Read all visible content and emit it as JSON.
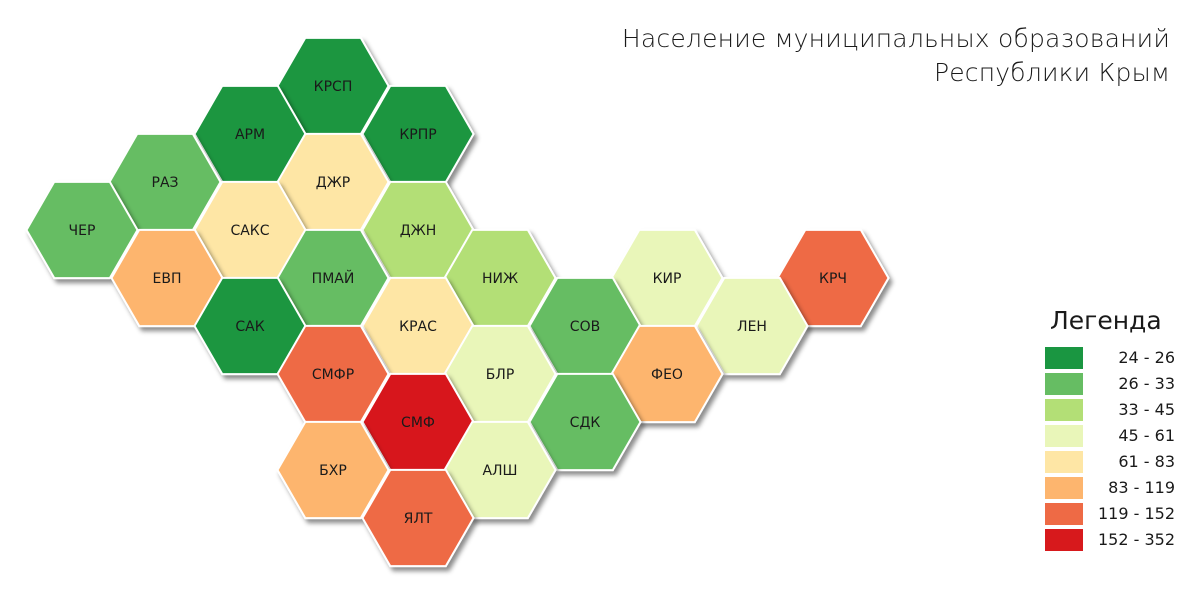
{
  "title": {
    "line1": "Население муниципальных образований",
    "line2": "Республики Крым"
  },
  "legend": {
    "title": "Легенда",
    "classes": [
      {
        "label": "24 - 26",
        "color": "#1a9641"
      },
      {
        "label": "26 - 33",
        "color": "#66bd63"
      },
      {
        "label": "33 - 45",
        "color": "#b3df76"
      },
      {
        "label": "45 - 61",
        "color": "#e9f6b9"
      },
      {
        "label": "61 - 83",
        "color": "#fee6a5"
      },
      {
        "label": "83 - 119",
        "color": "#fdb56e"
      },
      {
        "label": "119 - 152",
        "color": "#ee6a45"
      },
      {
        "label": "152 - 352",
        "color": "#d7191c"
      }
    ]
  },
  "hexes": [
    {
      "label": "КРСП",
      "class": 0
    },
    {
      "label": "АРМ",
      "class": 0
    },
    {
      "label": "КРПР",
      "class": 0
    },
    {
      "label": "РАЗ",
      "class": 1
    },
    {
      "label": "ДЖР",
      "class": 4
    },
    {
      "label": "ЧЕР",
      "class": 1
    },
    {
      "label": "САКС",
      "class": 4
    },
    {
      "label": "ДЖН",
      "class": 2
    },
    {
      "label": "ЕВП",
      "class": 5
    },
    {
      "label": "ПМАЙ",
      "class": 1
    },
    {
      "label": "НИЖ",
      "class": 2
    },
    {
      "label": "КИР",
      "class": 3
    },
    {
      "label": "КРЧ",
      "class": 6
    },
    {
      "label": "САК",
      "class": 0
    },
    {
      "label": "КРАС",
      "class": 4
    },
    {
      "label": "СОВ",
      "class": 1
    },
    {
      "label": "ЛЕН",
      "class": 3
    },
    {
      "label": "СМФР",
      "class": 6
    },
    {
      "label": "БЛР",
      "class": 3
    },
    {
      "label": "ФЕО",
      "class": 5
    },
    {
      "label": "СМФ",
      "class": 7
    },
    {
      "label": "СДК",
      "class": 1
    },
    {
      "label": "БХР",
      "class": 5
    },
    {
      "label": "АЛШ",
      "class": 3
    },
    {
      "label": "ЯЛТ",
      "class": 6
    }
  ]
}
